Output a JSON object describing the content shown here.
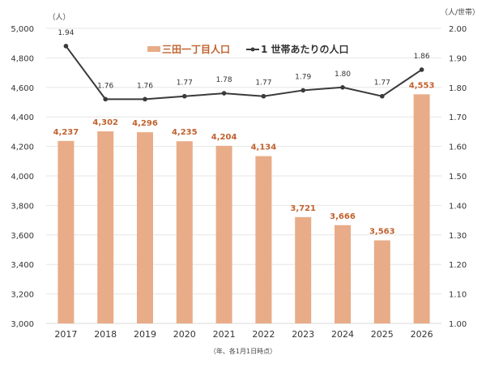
{
  "chart_data": {
    "type": "bar+line",
    "categories": [
      "2017",
      "2018",
      "2019",
      "2020",
      "2021",
      "2022",
      "2023",
      "2024",
      "2025",
      "2026"
    ],
    "series": [
      {
        "name": "三田一丁目人口",
        "type": "bar",
        "axis": "left",
        "color": "#E8AC88",
        "label_color": "#C0622F",
        "values": [
          4237,
          4302,
          4296,
          4235,
          4204,
          4134,
          3721,
          3666,
          3563,
          4553
        ],
        "labels": [
          "4,237",
          "4,302",
          "4,296",
          "4,235",
          "4,204",
          "4,134",
          "3,721",
          "3,666",
          "3,563",
          "4,553"
        ]
      },
      {
        "name": "1 世帯あたりの人口",
        "type": "line",
        "axis": "right",
        "color": "#3A3A3A",
        "values": [
          1.94,
          1.76,
          1.76,
          1.77,
          1.78,
          1.77,
          1.79,
          1.8,
          1.77,
          1.86
        ],
        "labels": [
          "1.94",
          "1.76",
          "1.76",
          "1.77",
          "1.78",
          "1.77",
          "1.79",
          "1.80",
          "1.77",
          "1.86"
        ]
      }
    ],
    "left_axis": {
      "unit": "（人）",
      "ylim": [
        3000,
        5000
      ],
      "ticks": [
        "3,000",
        "3,200",
        "3,400",
        "3,600",
        "3,800",
        "4,000",
        "4,200",
        "4,400",
        "4,600",
        "4,800",
        "5,000"
      ]
    },
    "right_axis": {
      "unit": "（人/世帯）",
      "ylim": [
        1.0,
        2.0
      ],
      "ticks": [
        "1.00",
        "1.10",
        "1.20",
        "1.30",
        "1.40",
        "1.50",
        "1.60",
        "1.70",
        "1.80",
        "1.90",
        "2.00"
      ]
    },
    "xlabel": "（年、各1月1日時点）",
    "grid": true,
    "legend": "top-center"
  }
}
